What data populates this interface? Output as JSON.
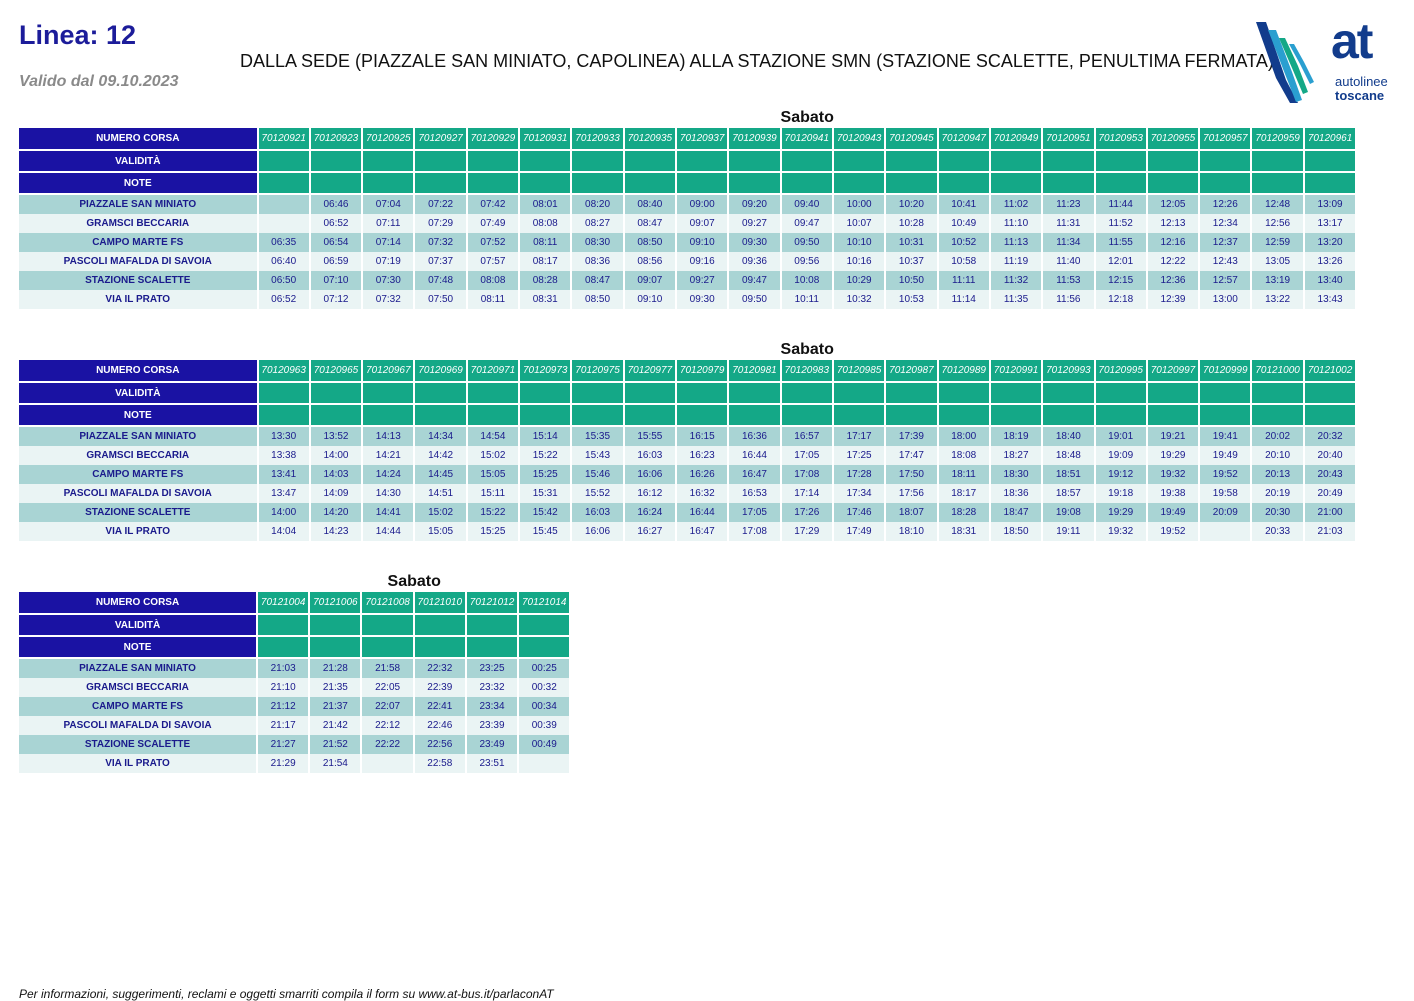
{
  "header": {
    "line": "Linea: 12",
    "valid_from": "Valido dal 09.10.2023",
    "route": "DALLA SEDE (PIAZZALE SAN MINIATO, CAPOLINEA)  ALLA STAZIONE SMN (STAZIONE SCALETTE, PENULTIMA FERMATA)",
    "logo_at": "at",
    "logo_line1": "autolinee",
    "logo_line2": "toscane"
  },
  "row_labels": {
    "numero_corsa": "NUMERO CORSA",
    "validita": "VALIDITÀ",
    "note": "NOTE"
  },
  "stops": [
    "PIAZZALE SAN MINIATO",
    "GRAMSCI BECCARIA",
    "CAMPO MARTE FS",
    "PASCOLI MAFALDA DI SAVOIA",
    "STAZIONE SCALETTE",
    "VIA IL PRATO"
  ],
  "tables": [
    {
      "day": "Sabato",
      "runs": [
        "70120921",
        "70120923",
        "70120925",
        "70120927",
        "70120929",
        "70120931",
        "70120933",
        "70120935",
        "70120937",
        "70120939",
        "70120941",
        "70120943",
        "70120945",
        "70120947",
        "70120949",
        "70120951",
        "70120953",
        "70120955",
        "70120957",
        "70120959",
        "70120961"
      ],
      "times": [
        [
          "",
          "06:46",
          "07:04",
          "07:22",
          "07:42",
          "08:01",
          "08:20",
          "08:40",
          "09:00",
          "09:20",
          "09:40",
          "10:00",
          "10:20",
          "10:41",
          "11:02",
          "11:23",
          "11:44",
          "12:05",
          "12:26",
          "12:48",
          "13:09"
        ],
        [
          "",
          "06:52",
          "07:11",
          "07:29",
          "07:49",
          "08:08",
          "08:27",
          "08:47",
          "09:07",
          "09:27",
          "09:47",
          "10:07",
          "10:28",
          "10:49",
          "11:10",
          "11:31",
          "11:52",
          "12:13",
          "12:34",
          "12:56",
          "13:17"
        ],
        [
          "06:35",
          "06:54",
          "07:14",
          "07:32",
          "07:52",
          "08:11",
          "08:30",
          "08:50",
          "09:10",
          "09:30",
          "09:50",
          "10:10",
          "10:31",
          "10:52",
          "11:13",
          "11:34",
          "11:55",
          "12:16",
          "12:37",
          "12:59",
          "13:20"
        ],
        [
          "06:40",
          "06:59",
          "07:19",
          "07:37",
          "07:57",
          "08:17",
          "08:36",
          "08:56",
          "09:16",
          "09:36",
          "09:56",
          "10:16",
          "10:37",
          "10:58",
          "11:19",
          "11:40",
          "12:01",
          "12:22",
          "12:43",
          "13:05",
          "13:26"
        ],
        [
          "06:50",
          "07:10",
          "07:30",
          "07:48",
          "08:08",
          "08:28",
          "08:47",
          "09:07",
          "09:27",
          "09:47",
          "10:08",
          "10:29",
          "10:50",
          "11:11",
          "11:32",
          "11:53",
          "12:15",
          "12:36",
          "12:57",
          "13:19",
          "13:40"
        ],
        [
          "06:52",
          "07:12",
          "07:32",
          "07:50",
          "08:11",
          "08:31",
          "08:50",
          "09:10",
          "09:30",
          "09:50",
          "10:11",
          "10:32",
          "10:53",
          "11:14",
          "11:35",
          "11:56",
          "12:18",
          "12:39",
          "13:00",
          "13:22",
          "13:43"
        ]
      ]
    },
    {
      "day": "Sabato",
      "runs": [
        "70120963",
        "70120965",
        "70120967",
        "70120969",
        "70120971",
        "70120973",
        "70120975",
        "70120977",
        "70120979",
        "70120981",
        "70120983",
        "70120985",
        "70120987",
        "70120989",
        "70120991",
        "70120993",
        "70120995",
        "70120997",
        "70120999",
        "70121000",
        "70121002"
      ],
      "times": [
        [
          "13:30",
          "13:52",
          "14:13",
          "14:34",
          "14:54",
          "15:14",
          "15:35",
          "15:55",
          "16:15",
          "16:36",
          "16:57",
          "17:17",
          "17:39",
          "18:00",
          "18:19",
          "18:40",
          "19:01",
          "19:21",
          "19:41",
          "20:02",
          "20:32"
        ],
        [
          "13:38",
          "14:00",
          "14:21",
          "14:42",
          "15:02",
          "15:22",
          "15:43",
          "16:03",
          "16:23",
          "16:44",
          "17:05",
          "17:25",
          "17:47",
          "18:08",
          "18:27",
          "18:48",
          "19:09",
          "19:29",
          "19:49",
          "20:10",
          "20:40"
        ],
        [
          "13:41",
          "14:03",
          "14:24",
          "14:45",
          "15:05",
          "15:25",
          "15:46",
          "16:06",
          "16:26",
          "16:47",
          "17:08",
          "17:28",
          "17:50",
          "18:11",
          "18:30",
          "18:51",
          "19:12",
          "19:32",
          "19:52",
          "20:13",
          "20:43"
        ],
        [
          "13:47",
          "14:09",
          "14:30",
          "14:51",
          "15:11",
          "15:31",
          "15:52",
          "16:12",
          "16:32",
          "16:53",
          "17:14",
          "17:34",
          "17:56",
          "18:17",
          "18:36",
          "18:57",
          "19:18",
          "19:38",
          "19:58",
          "20:19",
          "20:49"
        ],
        [
          "14:00",
          "14:20",
          "14:41",
          "15:02",
          "15:22",
          "15:42",
          "16:03",
          "16:24",
          "16:44",
          "17:05",
          "17:26",
          "17:46",
          "18:07",
          "18:28",
          "18:47",
          "19:08",
          "19:29",
          "19:49",
          "20:09",
          "20:30",
          "21:00"
        ],
        [
          "14:04",
          "14:23",
          "14:44",
          "15:05",
          "15:25",
          "15:45",
          "16:06",
          "16:27",
          "16:47",
          "17:08",
          "17:29",
          "17:49",
          "18:10",
          "18:31",
          "18:50",
          "19:11",
          "19:32",
          "19:52",
          "",
          "20:33",
          "21:03"
        ]
      ]
    },
    {
      "day": "Sabato",
      "runs": [
        "70121004",
        "70121006",
        "70121008",
        "70121010",
        "70121012",
        "70121014"
      ],
      "times": [
        [
          "21:03",
          "21:28",
          "21:58",
          "22:32",
          "23:25",
          "00:25"
        ],
        [
          "21:10",
          "21:35",
          "22:05",
          "22:39",
          "23:32",
          "00:32"
        ],
        [
          "21:12",
          "21:37",
          "22:07",
          "22:41",
          "23:34",
          "00:34"
        ],
        [
          "21:17",
          "21:42",
          "22:12",
          "22:46",
          "23:39",
          "00:39"
        ],
        [
          "21:27",
          "21:52",
          "22:22",
          "22:56",
          "23:49",
          "00:49"
        ],
        [
          "21:29",
          "21:54",
          "",
          "22:58",
          "23:51",
          ""
        ]
      ]
    }
  ],
  "footer": "Per informazioni, suggerimenti, reclami e oggetti smarriti compila il form su  www.at-bus.it/parlaconAT",
  "colors": {
    "header_blue": "#1a12a3",
    "header_green": "#14a887",
    "row_dark": "#a9d4d4",
    "row_light": "#eaf4f4",
    "text_navy": "#1a1a8c"
  }
}
